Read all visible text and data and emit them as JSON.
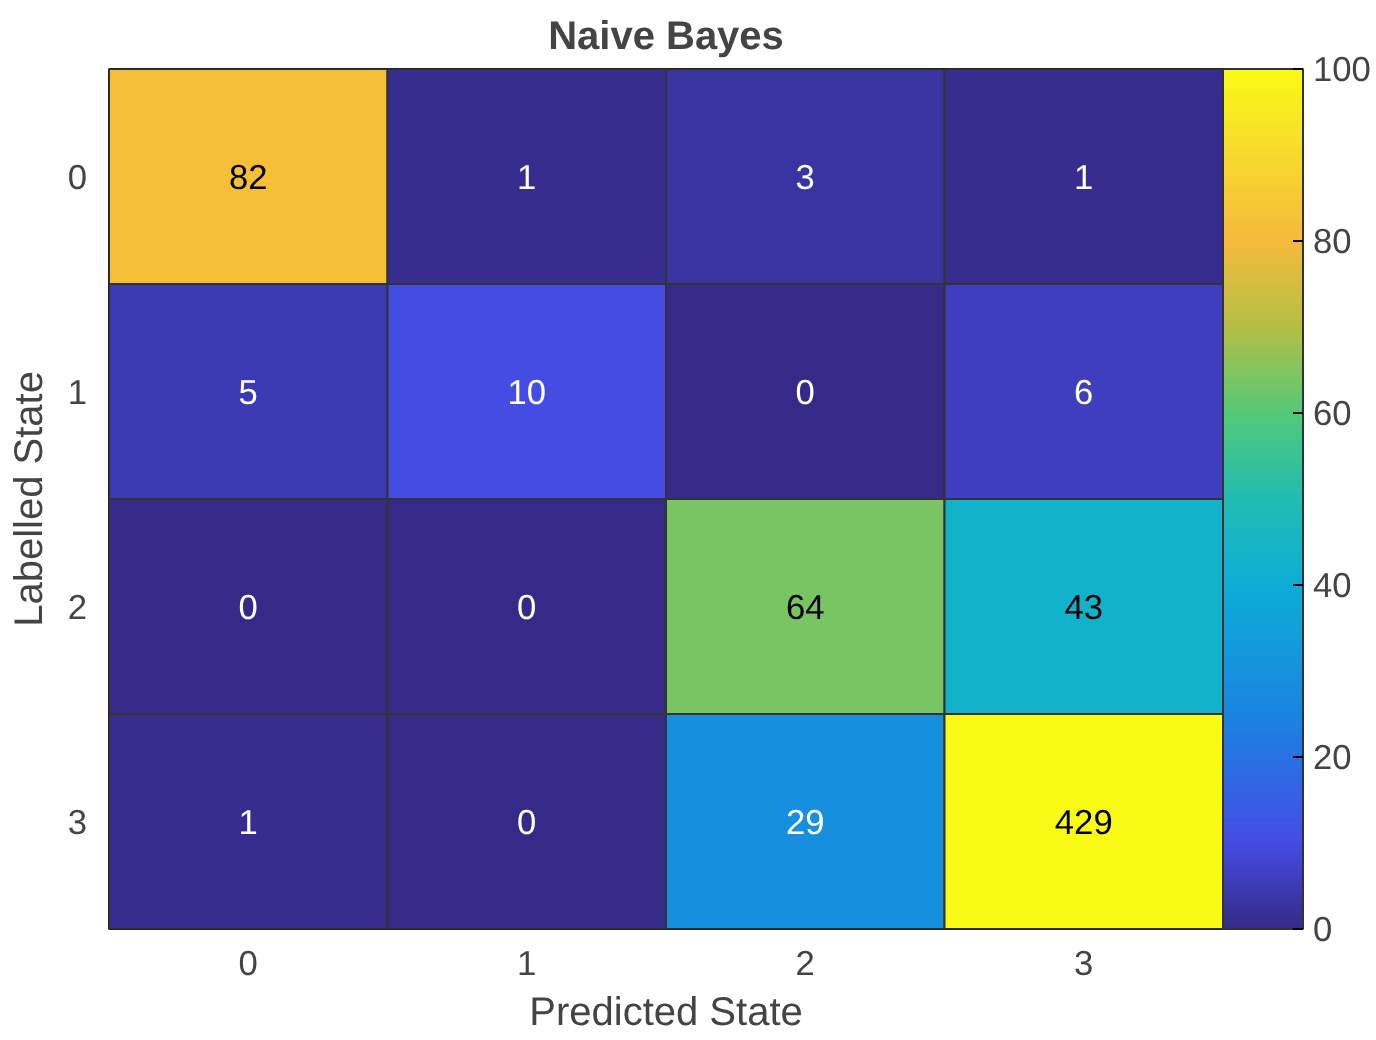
{
  "chart_data": {
    "type": "heatmap",
    "title": "Naive Bayes",
    "xlabel": "Predicted State",
    "ylabel": "Labelled State",
    "categories": [
      "0",
      "1",
      "2",
      "3"
    ],
    "y_categories": [
      "0",
      "1",
      "2",
      "3"
    ],
    "cells": [
      [
        82,
        1,
        3,
        1
      ],
      [
        5,
        10,
        0,
        6
      ],
      [
        0,
        0,
        64,
        43
      ],
      [
        1,
        0,
        29,
        429
      ]
    ],
    "clim": [
      0,
      100
    ],
    "cticks": [
      0,
      20,
      40,
      60,
      80,
      100
    ],
    "data_labels": true
  }
}
